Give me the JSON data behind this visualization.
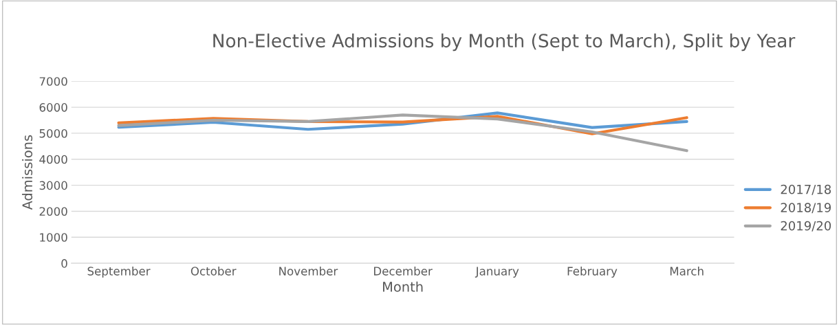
{
  "chart_data": {
    "type": "line",
    "title": "Non-Elective Admissions by Month (Sept to March), Split by Year",
    "xlabel": "Month",
    "ylabel": "Admissions",
    "categories": [
      "September",
      "October",
      "November",
      "December",
      "January",
      "February",
      "March"
    ],
    "series": [
      {
        "name": "2017/18",
        "color": "#5b9bd5",
        "values": [
          5230,
          5420,
          5150,
          5350,
          5780,
          5220,
          5450
        ]
      },
      {
        "name": "2018/19",
        "color": "#ed7d31",
        "values": [
          5400,
          5570,
          5450,
          5430,
          5650,
          4980,
          5600
        ]
      },
      {
        "name": "2019/20",
        "color": "#a5a5a5",
        "values": [
          5300,
          5500,
          5450,
          5700,
          5550,
          5050,
          4330
        ]
      }
    ],
    "ylim": [
      0,
      7000
    ],
    "yticks": [
      0,
      1000,
      2000,
      3000,
      4000,
      5000,
      6000,
      7000
    ],
    "grid": "y",
    "legend": "right",
    "marker": "none",
    "line_style": "solid"
  }
}
